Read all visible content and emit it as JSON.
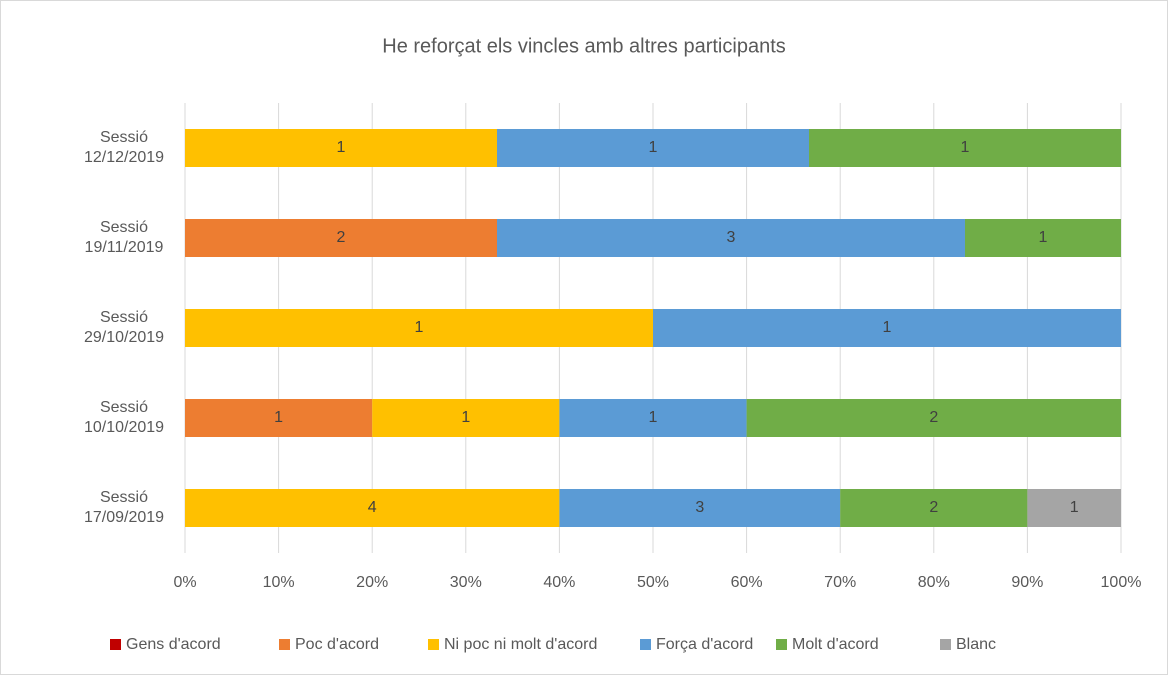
{
  "chart_data": {
    "type": "bar",
    "orientation": "horizontal",
    "stacked": "percent",
    "title": "He reforçat els vincles amb altres participants",
    "categories": [
      "Sessió 12/12/2019",
      "Sessió 19/11/2019",
      "Sessió 29/10/2019",
      "Sessió 10/10/2019",
      "Sessió 17/09/2019"
    ],
    "series": [
      {
        "name": "Gens d'acord",
        "color": "#c00000",
        "values": [
          null,
          null,
          null,
          null,
          null
        ]
      },
      {
        "name": "Poc d'acord",
        "color": "#ed7d31",
        "values": [
          null,
          2,
          null,
          1,
          null
        ]
      },
      {
        "name": "Ni poc ni molt d'acord",
        "color": "#ffc000",
        "values": [
          1,
          null,
          1,
          1,
          4
        ]
      },
      {
        "name": "Força d'acord",
        "color": "#5b9bd5",
        "values": [
          1,
          3,
          1,
          1,
          3
        ]
      },
      {
        "name": "Molt d'acord",
        "color": "#70ad47",
        "values": [
          1,
          1,
          null,
          2,
          2
        ]
      },
      {
        "name": "Blanc",
        "color": "#a5a5a5",
        "values": [
          null,
          null,
          null,
          null,
          1
        ]
      }
    ],
    "xlim": [
      0,
      100
    ],
    "xticks": [
      {
        "value": 0,
        "label": "0%"
      },
      {
        "value": 10,
        "label": "10%"
      },
      {
        "value": 20,
        "label": "20%"
      },
      {
        "value": 30,
        "label": "30%"
      },
      {
        "value": 40,
        "label": "40%"
      },
      {
        "value": 50,
        "label": "50%"
      },
      {
        "value": 60,
        "label": "60%"
      },
      {
        "value": 70,
        "label": "70%"
      },
      {
        "value": 80,
        "label": "80%"
      },
      {
        "value": 90,
        "label": "90%"
      },
      {
        "value": 100,
        "label": "100%"
      }
    ],
    "grid": true,
    "legend": "bottom"
  }
}
